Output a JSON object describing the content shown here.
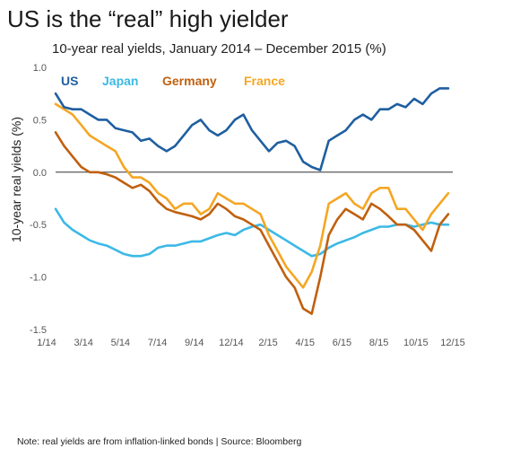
{
  "title": "US is the “real” high yielder",
  "note": "Note: real yields are from inflation-linked bonds | Source: Bloomberg",
  "chart_data": {
    "type": "line",
    "title": "10-year real yields, January 2014 – December 2015 (%)",
    "ylabel": "10-year real yields (%)",
    "xlabel": "",
    "ylim": [
      -1.5,
      1.0
    ],
    "xlim": [
      0,
      23
    ],
    "x_tick_labels": [
      "1/14",
      "3/14",
      "5/14",
      "7/14",
      "9/14",
      "12/14",
      "2/15",
      "4/15",
      "6/15",
      "8/15",
      "10/15",
      "12/15"
    ],
    "y_tick_labels": [
      "1.0",
      "0.5",
      "0.0",
      "-0.5",
      "-1.0",
      "-1.5"
    ],
    "y_ticks": [
      1.0,
      0.5,
      0.0,
      -0.5,
      -1.0,
      -1.5
    ],
    "zero_line": true,
    "legend_position": "top-left",
    "series": [
      {
        "name": "US",
        "color": "#1f5fa0",
        "x": [
          0,
          0.5,
          1,
          1.5,
          2,
          2.5,
          3,
          3.5,
          4,
          4.5,
          5,
          5.5,
          6,
          6.5,
          7,
          7.5,
          8,
          8.5,
          9,
          9.5,
          10,
          10.5,
          11,
          11.5,
          12,
          12.5,
          13,
          13.5,
          14,
          14.5,
          15,
          15.5,
          16,
          16.5,
          17,
          17.5,
          18,
          18.5,
          19,
          19.5,
          20,
          20.5,
          21,
          21.5,
          22,
          22.5,
          23
        ],
        "values": [
          0.75,
          0.62,
          0.6,
          0.6,
          0.55,
          0.5,
          0.5,
          0.42,
          0.4,
          0.38,
          0.3,
          0.32,
          0.25,
          0.2,
          0.25,
          0.35,
          0.45,
          0.5,
          0.4,
          0.35,
          0.4,
          0.5,
          0.55,
          0.4,
          0.3,
          0.2,
          0.28,
          0.3,
          0.25,
          0.1,
          0.05,
          0.02,
          0.3,
          0.35,
          0.4,
          0.5,
          0.55,
          0.5,
          0.6,
          0.6,
          0.65,
          0.62,
          0.7,
          0.65,
          0.75,
          0.8,
          0.8
        ]
      },
      {
        "name": "Japan",
        "color": "#3cb9e6",
        "x": [
          0,
          0.5,
          1,
          1.5,
          2,
          2.5,
          3,
          3.5,
          4,
          4.5,
          5,
          5.5,
          6,
          6.5,
          7,
          7.5,
          8,
          8.5,
          9,
          9.5,
          10,
          10.5,
          11,
          11.5,
          12,
          12.5,
          13,
          13.5,
          14,
          14.5,
          15,
          15.5,
          16,
          16.5,
          17,
          17.5,
          18,
          18.5,
          19,
          19.5,
          20,
          20.5,
          21,
          21.5,
          22,
          22.5,
          23
        ],
        "values": [
          -0.35,
          -0.48,
          -0.55,
          -0.6,
          -0.65,
          -0.68,
          -0.7,
          -0.74,
          -0.78,
          -0.8,
          -0.8,
          -0.78,
          -0.72,
          -0.7,
          -0.7,
          -0.68,
          -0.66,
          -0.66,
          -0.63,
          -0.6,
          -0.58,
          -0.6,
          -0.55,
          -0.52,
          -0.5,
          -0.55,
          -0.6,
          -0.65,
          -0.7,
          -0.75,
          -0.8,
          -0.78,
          -0.72,
          -0.68,
          -0.65,
          -0.62,
          -0.58,
          -0.55,
          -0.52,
          -0.52,
          -0.5,
          -0.5,
          -0.52,
          -0.5,
          -0.48,
          -0.5,
          -0.5
        ]
      },
      {
        "name": "Germany",
        "color": "#c0600e",
        "x": [
          0,
          0.5,
          1,
          1.5,
          2,
          2.5,
          3,
          3.5,
          4,
          4.5,
          5,
          5.5,
          6,
          6.5,
          7,
          7.5,
          8,
          8.5,
          9,
          9.5,
          10,
          10.5,
          11,
          11.5,
          12,
          12.5,
          13,
          13.5,
          14,
          14.5,
          15,
          15.5,
          16,
          16.5,
          17,
          17.5,
          18,
          18.5,
          19,
          19.5,
          20,
          20.5,
          21,
          21.5,
          22,
          22.5,
          23
        ],
        "values": [
          0.38,
          0.25,
          0.15,
          0.05,
          0.0,
          0.0,
          -0.02,
          -0.05,
          -0.1,
          -0.15,
          -0.12,
          -0.18,
          -0.28,
          -0.35,
          -0.38,
          -0.4,
          -0.42,
          -0.45,
          -0.4,
          -0.3,
          -0.35,
          -0.42,
          -0.45,
          -0.5,
          -0.55,
          -0.7,
          -0.85,
          -1.0,
          -1.1,
          -1.3,
          -1.35,
          -1.0,
          -0.6,
          -0.45,
          -0.35,
          -0.4,
          -0.45,
          -0.3,
          -0.35,
          -0.42,
          -0.5,
          -0.5,
          -0.55,
          -0.65,
          -0.75,
          -0.5,
          -0.4
        ]
      },
      {
        "name": "France",
        "color": "#f5a623",
        "x": [
          0,
          0.5,
          1,
          1.5,
          2,
          2.5,
          3,
          3.5,
          4,
          4.5,
          5,
          5.5,
          6,
          6.5,
          7,
          7.5,
          8,
          8.5,
          9,
          9.5,
          10,
          10.5,
          11,
          11.5,
          12,
          12.5,
          13,
          13.5,
          14,
          14.5,
          15,
          15.5,
          16,
          16.5,
          17,
          17.5,
          18,
          18.5,
          19,
          19.5,
          20,
          20.5,
          21,
          21.5,
          22,
          22.5,
          23
        ],
        "values": [
          0.65,
          0.6,
          0.55,
          0.45,
          0.35,
          0.3,
          0.25,
          0.2,
          0.05,
          -0.05,
          -0.05,
          -0.1,
          -0.2,
          -0.25,
          -0.35,
          -0.3,
          -0.3,
          -0.4,
          -0.35,
          -0.2,
          -0.25,
          -0.3,
          -0.3,
          -0.35,
          -0.4,
          -0.6,
          -0.75,
          -0.9,
          -1.0,
          -1.1,
          -0.95,
          -0.7,
          -0.3,
          -0.25,
          -0.2,
          -0.3,
          -0.35,
          -0.2,
          -0.15,
          -0.15,
          -0.35,
          -0.35,
          -0.45,
          -0.55,
          -0.4,
          -0.3,
          -0.2
        ]
      }
    ]
  }
}
